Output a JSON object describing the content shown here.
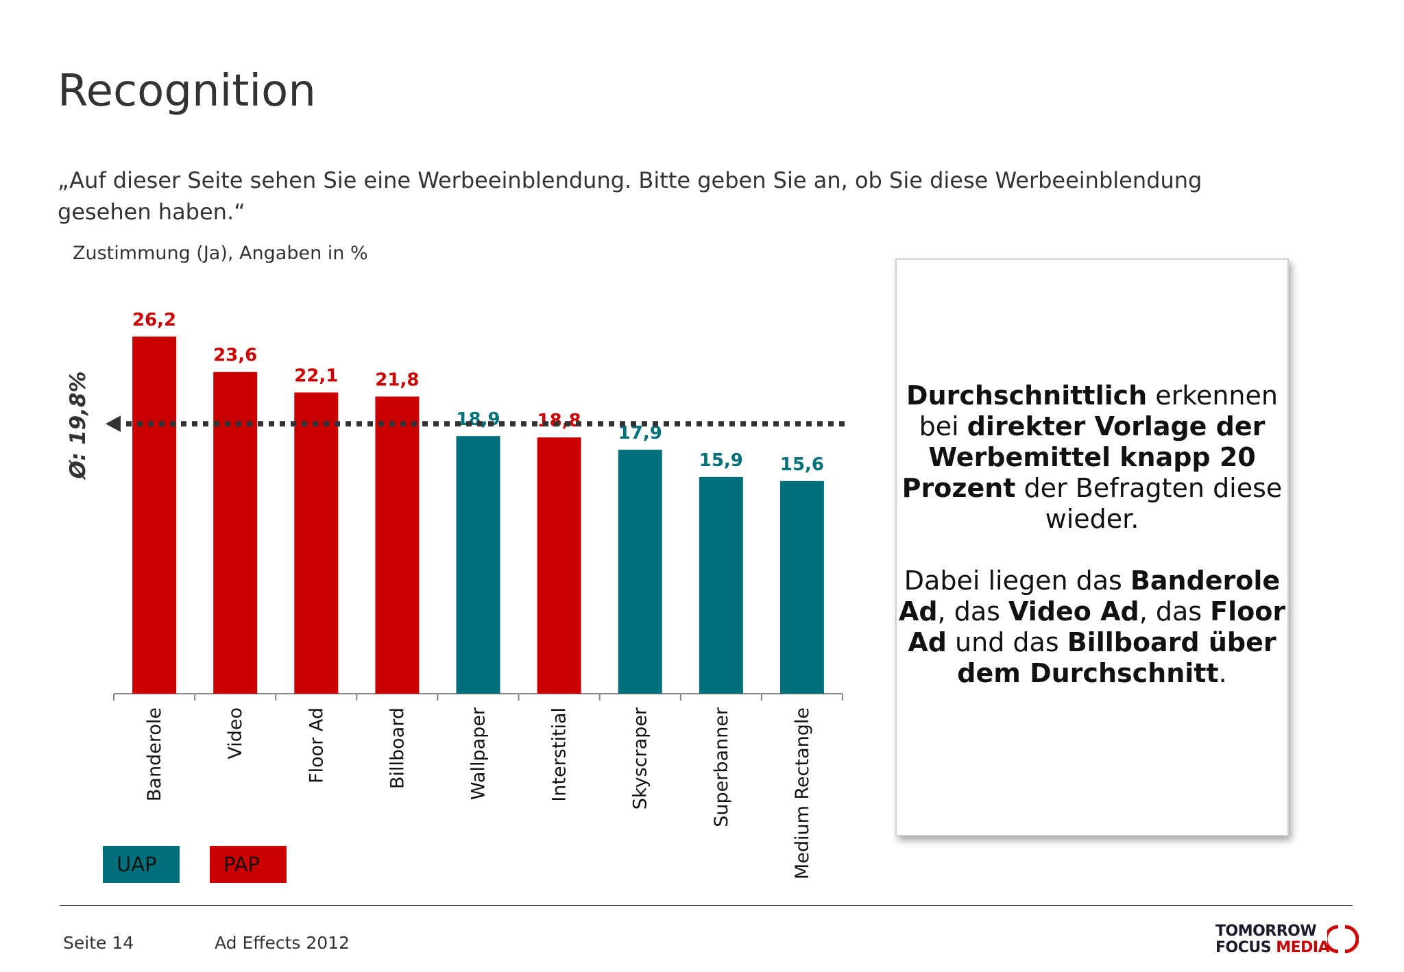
{
  "page": {
    "title": "Recognition",
    "question": "„Auf dieser Seite sehen Sie eine Werbeeinblendung. Bitte geben Sie an, ob Sie diese Werbeeinblendung gesehen haben.“",
    "unit_note": "Zustimmung (Ja), Angaben in %"
  },
  "colors": {
    "uap": "#00707a",
    "pap": "#cc0000",
    "avg_line": "#333333"
  },
  "chart_data": {
    "type": "bar",
    "categories": [
      "Banderole",
      "Video",
      "Floor Ad",
      "Billboard",
      "Wallpaper",
      "Interstitial",
      "Skyscraper",
      "Superbanner",
      "Medium Rectangle"
    ],
    "values": [
      26.2,
      23.6,
      22.1,
      21.8,
      18.9,
      18.8,
      17.9,
      15.9,
      15.6
    ],
    "value_labels": [
      "26,2",
      "23,6",
      "22,1",
      "21,8",
      "18,9",
      "18,8",
      "17,9",
      "15,9",
      "15,6"
    ],
    "groups": [
      "PAP",
      "PAP",
      "PAP",
      "PAP",
      "UAP",
      "PAP",
      "UAP",
      "UAP",
      "UAP"
    ],
    "average": 19.8,
    "average_label": "Ø: 19,8%",
    "ylim": [
      0,
      27
    ],
    "grid": false
  },
  "legend": {
    "uap": "UAP",
    "pap": "PAP"
  },
  "infobox": {
    "p1": [
      {
        "t": "Durchschnittlich",
        "b": true
      },
      {
        "t": " erkennen bei ",
        "b": false
      },
      {
        "t": "direkter Vorlage der Werbemittel knapp 20 Prozent",
        "b": true
      },
      {
        "t": " der Befragten diese wieder.",
        "b": false
      }
    ],
    "p2": [
      {
        "t": "Dabei liegen das ",
        "b": false
      },
      {
        "t": "Banderole Ad",
        "b": true
      },
      {
        "t": ", das ",
        "b": false
      },
      {
        "t": "Video Ad",
        "b": true
      },
      {
        "t": ", das ",
        "b": false
      },
      {
        "t": "Floor Ad",
        "b": true
      },
      {
        "t": " und das ",
        "b": false
      },
      {
        "t": "Billboard über dem Durchschnitt",
        "b": true
      },
      {
        "t": ".",
        "b": false
      }
    ]
  },
  "footer": {
    "page": "Seite 14",
    "event": "Ad Effects 2012"
  },
  "logo": {
    "line1": "TOMORROW",
    "line2a": "FOCUS ",
    "line2b": "MEDIA"
  }
}
